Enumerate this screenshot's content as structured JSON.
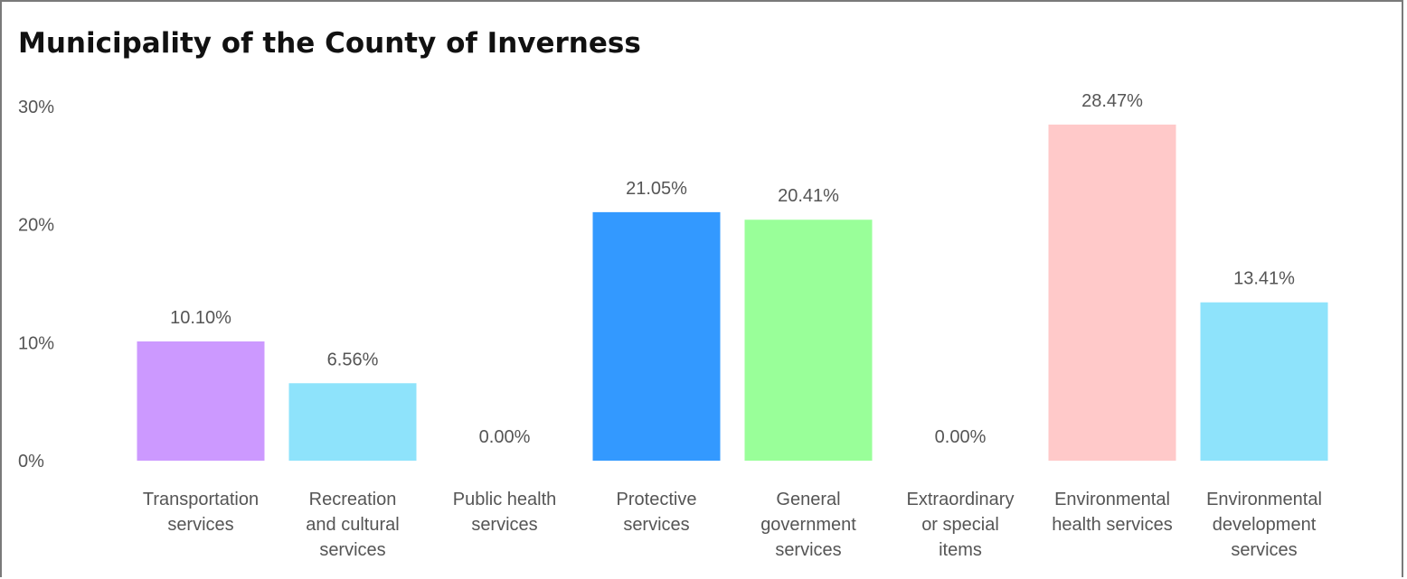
{
  "chart_data": {
    "type": "bar",
    "title": "Municipality of the County of Inverness",
    "xlabel": "",
    "ylabel": "",
    "ylim": [
      0,
      30
    ],
    "y_ticks": [
      "0%",
      "10%",
      "20%",
      "30%"
    ],
    "y_tick_values": [
      0,
      10,
      20,
      30
    ],
    "grid": false,
    "legend": "none",
    "categories": [
      [
        "Transportation",
        "services"
      ],
      [
        "Recreation",
        "and cultural",
        "services"
      ],
      [
        "Public health",
        "services"
      ],
      [
        "Protective",
        "services"
      ],
      [
        "General",
        "government",
        "services"
      ],
      [
        "Extraordinary",
        "or special",
        "items"
      ],
      [
        "Environmental",
        "health services"
      ],
      [
        "Environmental",
        "development",
        "services"
      ]
    ],
    "values": [
      10.1,
      6.56,
      0.0,
      21.05,
      20.41,
      0.0,
      28.47,
      13.41
    ],
    "data_labels": [
      "10.10%",
      "6.56%",
      "0.00%",
      "21.05%",
      "20.41%",
      "0.00%",
      "28.47%",
      "13.41%"
    ],
    "colors": [
      "#cc99ff",
      "#8ee3fb",
      "#8ee3fb",
      "#3399ff",
      "#99ff99",
      "#8ee3fb",
      "#ffc9c9",
      "#8ee3fb"
    ]
  }
}
